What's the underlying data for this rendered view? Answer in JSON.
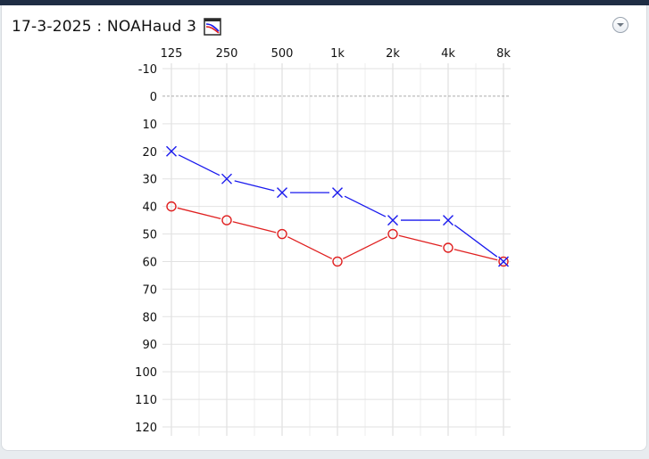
{
  "header": {
    "title": "17-3-2025 : NOAHaud 3",
    "icon": "audiogram-icon",
    "menu_icon": "chevron-down-icon"
  },
  "colors": {
    "right_ear": "#e02020",
    "left_ear": "#1a1aee",
    "grid": "#e2e2e2",
    "zero_line": "#aaaaaa"
  },
  "chart_data": {
    "type": "line",
    "x_tick_labels": [
      "125",
      "250",
      "500",
      "1k",
      "2k",
      "4k",
      "8k"
    ],
    "x_values_hz": [
      125,
      250,
      500,
      1000,
      2000,
      4000,
      8000
    ],
    "x_scale": "log",
    "y_tick_labels": [
      "-10",
      "0",
      "10",
      "20",
      "30",
      "40",
      "50",
      "60",
      "70",
      "80",
      "90",
      "100",
      "110",
      "120"
    ],
    "ylim": [
      -10,
      120
    ],
    "y_inverted": true,
    "grid": true,
    "series": [
      {
        "marker": "x",
        "color": "#1a1aee",
        "x": [
          125,
          250,
          500,
          1000,
          2000,
          4000,
          8000
        ],
        "values": [
          20,
          30,
          35,
          35,
          45,
          45,
          60
        ]
      },
      {
        "marker": "o",
        "color": "#e02020",
        "x": [
          125,
          250,
          500,
          1000,
          2000,
          4000,
          8000
        ],
        "values": [
          40,
          45,
          50,
          60,
          50,
          55,
          60
        ]
      }
    ]
  }
}
